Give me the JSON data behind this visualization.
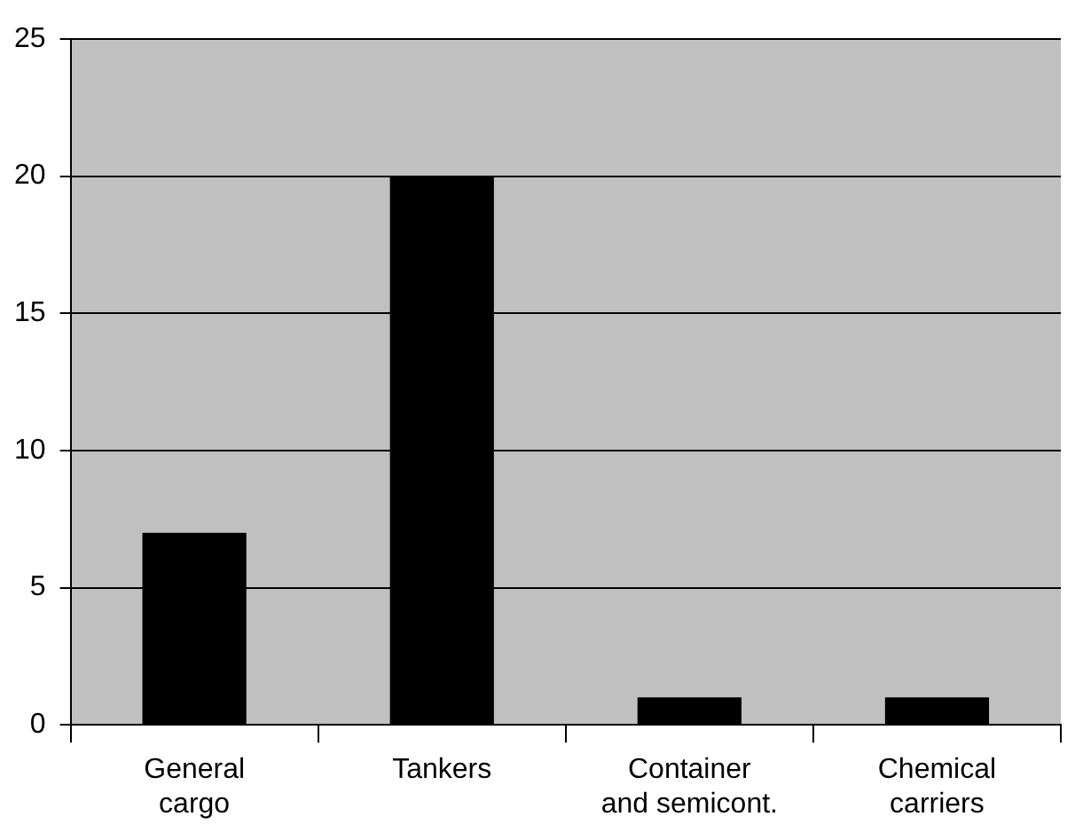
{
  "chart_data": {
    "type": "bar",
    "categories": [
      "General cargo",
      "Tankers",
      "Container and semicont.",
      "Chemical carriers"
    ],
    "values": [
      7,
      20,
      1,
      1
    ],
    "color": "#000000",
    "ylim": [
      0,
      25
    ],
    "yticks": [
      0,
      5,
      10,
      15,
      20,
      25
    ],
    "grid": "y",
    "legend": false
  }
}
